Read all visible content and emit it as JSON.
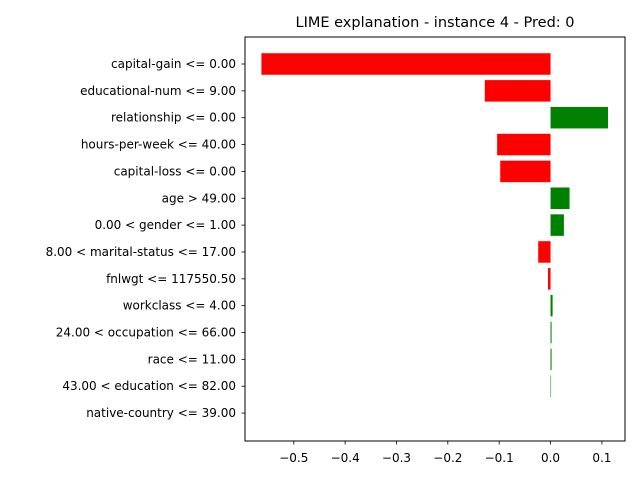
{
  "chart_data": {
    "type": "bar",
    "orientation": "horizontal",
    "title": "LIME explanation - instance 4 - Pred: 0",
    "xlabel": "",
    "ylabel": "",
    "xlim": [
      -0.595,
      0.145
    ],
    "grid": false,
    "legend": "none",
    "xticks": [
      -0.5,
      -0.4,
      -0.3,
      -0.2,
      -0.1,
      0.0,
      0.1
    ],
    "xtick_labels": [
      "−0.5",
      "−0.4",
      "−0.3",
      "−0.2",
      "−0.1",
      "0.0",
      "0.1"
    ],
    "colors": {
      "positive": "#008000",
      "negative": "#ff0000"
    },
    "categories": [
      "capital-gain <= 0.00",
      "educational-num <= 9.00",
      "relationship <= 0.00",
      "hours-per-week <= 40.00",
      "capital-loss <= 0.00",
      "age > 49.00",
      "0.00 < gender <= 1.00",
      "8.00 < marital-status <= 17.00",
      "fnlwgt <= 117550.50",
      "workclass <= 4.00",
      "24.00 < occupation <= 66.00",
      "race <= 11.00",
      "43.00 < education <= 82.00",
      "native-country <= 39.00"
    ],
    "values": [
      -0.563,
      -0.128,
      0.112,
      -0.104,
      -0.098,
      0.037,
      0.026,
      -0.024,
      -0.005,
      0.004,
      0.002,
      0.002,
      0.001,
      0.0
    ]
  }
}
